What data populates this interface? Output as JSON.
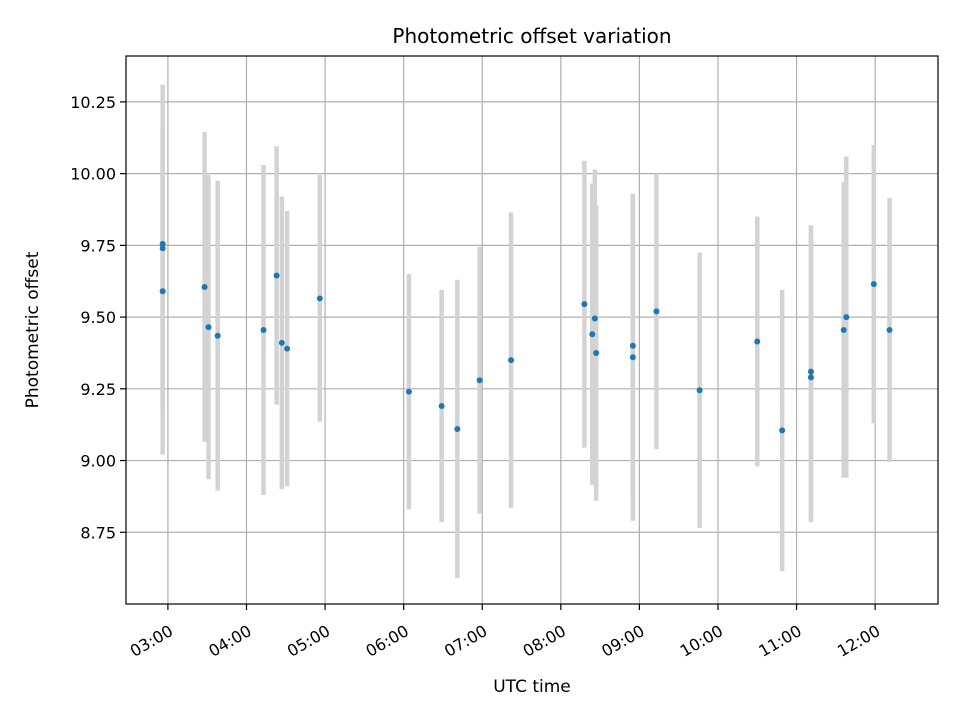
{
  "chart_data": {
    "type": "scatter",
    "title": "Photometric offset variation",
    "xlabel": "UTC time",
    "ylabel": "Photometric offset",
    "x_unit": "UTC time (HH:MM)",
    "x_ticks": [
      "03:00",
      "04:00",
      "05:00",
      "06:00",
      "07:00",
      "08:00",
      "09:00",
      "10:00",
      "11:00",
      "12:00"
    ],
    "y_ticks": [
      "8.75",
      "9.00",
      "9.25",
      "9.50",
      "9.75",
      "10.00",
      "10.25"
    ],
    "xlim": [
      "02:28",
      "12:48"
    ],
    "ylim": [
      8.5,
      10.41
    ],
    "grid": true,
    "colors": {
      "point": "#1f77b4",
      "errorbar": "#d3d3d3",
      "grid": "#b0b0b0"
    },
    "points": [
      {
        "x": "02:56",
        "y": 9.755,
        "err": 0.31
      },
      {
        "x": "02:56",
        "y": 9.74,
        "err": 0.57
      },
      {
        "x": "02:56",
        "y": 9.59,
        "err": 0.57
      },
      {
        "x": "03:28",
        "y": 9.605,
        "err": 0.54
      },
      {
        "x": "03:31",
        "y": 9.465,
        "err": 0.53
      },
      {
        "x": "03:38",
        "y": 9.435,
        "err": 0.54
      },
      {
        "x": "04:13",
        "y": 9.455,
        "err": 0.575
      },
      {
        "x": "04:23",
        "y": 9.645,
        "err": 0.45
      },
      {
        "x": "04:27",
        "y": 9.41,
        "err": 0.51
      },
      {
        "x": "04:31",
        "y": 9.39,
        "err": 0.48
      },
      {
        "x": "04:56",
        "y": 9.565,
        "err": 0.43
      },
      {
        "x": "06:04",
        "y": 9.24,
        "err": 0.41
      },
      {
        "x": "06:29",
        "y": 9.19,
        "err": 0.405
      },
      {
        "x": "06:41",
        "y": 9.11,
        "err": 0.52
      },
      {
        "x": "06:58",
        "y": 9.28,
        "err": 0.465
      },
      {
        "x": "07:22",
        "y": 9.35,
        "err": 0.515
      },
      {
        "x": "08:18",
        "y": 9.545,
        "err": 0.5
      },
      {
        "x": "08:24",
        "y": 9.44,
        "err": 0.525
      },
      {
        "x": "08:26",
        "y": 9.495,
        "err": 0.52
      },
      {
        "x": "08:27",
        "y": 9.375,
        "err": 0.515
      },
      {
        "x": "08:55",
        "y": 9.4,
        "err": 0.525
      },
      {
        "x": "08:55",
        "y": 9.36,
        "err": 0.57
      },
      {
        "x": "09:13",
        "y": 9.52,
        "err": 0.48
      },
      {
        "x": "09:46",
        "y": 9.245,
        "err": 0.48
      },
      {
        "x": "10:30",
        "y": 9.415,
        "err": 0.435
      },
      {
        "x": "10:49",
        "y": 9.105,
        "err": 0.49
      },
      {
        "x": "11:11",
        "y": 9.31,
        "err": 0.51
      },
      {
        "x": "11:11",
        "y": 9.29,
        "err": 0.505
      },
      {
        "x": "11:36",
        "y": 9.455,
        "err": 0.515
      },
      {
        "x": "11:38",
        "y": 9.5,
        "err": 0.56
      },
      {
        "x": "11:59",
        "y": 9.615,
        "err": 0.485
      },
      {
        "x": "12:11",
        "y": 9.455,
        "err": 0.46
      }
    ]
  }
}
